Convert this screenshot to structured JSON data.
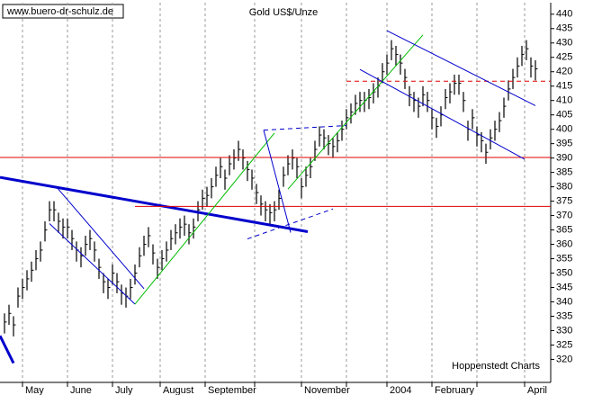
{
  "chart_data": {
    "type": "ohlc",
    "title": "Gold US$/Unze",
    "source_url": "www.buero-dr-schulz.de",
    "credit": "Hoppenstedt Charts",
    "color": "#000000",
    "grid_x": true,
    "x": [
      1,
      2,
      3,
      4,
      5,
      6,
      7,
      8,
      9,
      10,
      11,
      12,
      13,
      14,
      15,
      16,
      17,
      18,
      19,
      20,
      21,
      22,
      23,
      24,
      25,
      26,
      27,
      28,
      29,
      30,
      31,
      32,
      33,
      34,
      35,
      36,
      37,
      38,
      39,
      40,
      41,
      42,
      43,
      44,
      45,
      46,
      47,
      48,
      49,
      50,
      51,
      52,
      53,
      54,
      55,
      56,
      57,
      58,
      59,
      60,
      61,
      62,
      63,
      64,
      65,
      66,
      67,
      68,
      69,
      70,
      71,
      72,
      73,
      74,
      75,
      76,
      77,
      78,
      79,
      80,
      81,
      82,
      83,
      84,
      85,
      86,
      87,
      88,
      89,
      90,
      91,
      92,
      93,
      94,
      95,
      96,
      97,
      98,
      99,
      100,
      101,
      102,
      103,
      104,
      105,
      106,
      107,
      108,
      109,
      110,
      111,
      112,
      113,
      114,
      115,
      116,
      117,
      118,
      119
    ],
    "high": [
      336,
      339,
      335,
      345,
      348,
      351,
      354,
      358,
      361,
      368,
      375,
      375,
      371,
      369,
      369,
      365,
      361,
      359,
      363,
      365,
      361,
      355,
      350,
      348,
      353,
      350,
      346,
      345,
      348,
      353,
      359,
      363,
      366,
      360,
      355,
      358,
      361,
      365,
      367,
      369,
      370,
      367,
      369,
      375,
      379,
      380,
      383,
      387,
      390,
      386,
      391,
      393,
      396,
      393,
      389,
      386,
      381,
      377,
      375,
      374,
      375,
      379,
      387,
      391,
      393,
      390,
      383,
      387,
      390,
      396,
      401,
      400,
      398,
      397,
      399,
      403,
      407,
      409,
      412,
      413,
      413,
      414,
      416,
      418,
      423,
      426,
      431,
      429,
      426,
      421,
      415,
      413,
      411,
      415,
      413,
      407,
      404,
      408,
      414,
      416,
      419,
      419,
      413,
      403,
      407,
      401,
      399,
      395,
      400,
      403,
      406,
      411,
      417,
      421,
      425,
      429,
      431,
      425,
      424
    ],
    "low": [
      329,
      332,
      328,
      338,
      341,
      344,
      347,
      351,
      354,
      361,
      368,
      368,
      364,
      362,
      362,
      358,
      354,
      352,
      356,
      358,
      354,
      348,
      343,
      341,
      346,
      343,
      339,
      338,
      341,
      346,
      352,
      356,
      359,
      353,
      348,
      351,
      354,
      358,
      360,
      362,
      363,
      360,
      362,
      368,
      372,
      373,
      376,
      380,
      383,
      379,
      384,
      386,
      389,
      386,
      382,
      379,
      374,
      370,
      368,
      367,
      368,
      372,
      380,
      384,
      386,
      383,
      376,
      380,
      383,
      389,
      394,
      393,
      391,
      390,
      392,
      396,
      400,
      402,
      405,
      406,
      406,
      407,
      409,
      411,
      416,
      419,
      424,
      422,
      419,
      414,
      408,
      406,
      404,
      408,
      406,
      400,
      397,
      401,
      407,
      409,
      412,
      412,
      406,
      396,
      400,
      394,
      392,
      388,
      393,
      396,
      399,
      404,
      410,
      414,
      418,
      422,
      424,
      418,
      417
    ],
    "close": [
      333,
      336,
      332,
      342,
      345,
      348,
      351,
      355,
      358,
      365,
      372,
      372,
      368,
      366,
      366,
      362,
      358,
      356,
      360,
      362,
      358,
      352,
      347,
      345,
      350,
      347,
      343,
      342,
      345,
      350,
      356,
      360,
      363,
      357,
      352,
      355,
      358,
      362,
      364,
      366,
      367,
      364,
      366,
      372,
      376,
      377,
      380,
      384,
      387,
      383,
      388,
      390,
      393,
      390,
      386,
      383,
      378,
      374,
      372,
      371,
      372,
      376,
      384,
      388,
      390,
      387,
      380,
      384,
      387,
      393,
      398,
      397,
      395,
      394,
      396,
      400,
      404,
      406,
      409,
      410,
      410,
      411,
      413,
      415,
      420,
      423,
      428,
      426,
      423,
      418,
      412,
      410,
      408,
      412,
      410,
      404,
      401,
      405,
      411,
      413,
      416,
      416,
      410,
      400,
      404,
      398,
      396,
      392,
      397,
      400,
      403,
      408,
      414,
      418,
      422,
      426,
      428,
      422,
      421
    ],
    "xlim": [
      0,
      122.4
    ],
    "xticks": [
      {
        "value": 5,
        "label": "May"
      },
      {
        "value": 15,
        "label": "June"
      },
      {
        "value": 25,
        "label": "July"
      },
      {
        "value": 35.6,
        "label": "August"
      },
      {
        "value": 45.6,
        "label": "September"
      },
      {
        "value": 56.6,
        "label": null
      },
      {
        "value": 67,
        "label": "November"
      },
      {
        "value": 77,
        "label": null
      },
      {
        "value": 86,
        "label": "2004"
      },
      {
        "value": 96,
        "label": "February"
      },
      {
        "value": 106,
        "label": null
      },
      {
        "value": 116.6,
        "label": "April"
      }
    ],
    "ylim": [
      312,
      444
    ],
    "yticks": [
      320,
      325,
      330,
      335,
      340,
      345,
      350,
      355,
      360,
      365,
      370,
      375,
      380,
      385,
      390,
      395,
      400,
      405,
      410,
      415,
      420,
      425,
      430,
      435,
      440
    ],
    "trendlines": [
      {
        "color": "#0000cc",
        "width": 3,
        "dash": false,
        "points": [
          [
            0,
            383.3
          ],
          [
            68.4,
            364.4
          ]
        ]
      },
      {
        "color": "#0000cc",
        "width": 3,
        "dash": false,
        "points": [
          [
            0,
            328.2
          ],
          [
            3,
            318.7
          ]
        ]
      },
      {
        "color": "#dd0000",
        "width": 1,
        "dash": false,
        "points": [
          [
            0,
            390.2
          ],
          [
            122.4,
            390.2
          ]
        ]
      },
      {
        "color": "#dd0000",
        "width": 1,
        "dash": false,
        "points": [
          [
            30,
            373.2
          ],
          [
            122.4,
            373.2
          ]
        ]
      },
      {
        "color": "#dd0000",
        "width": 1,
        "dash": true,
        "points": [
          [
            77,
            416.7
          ],
          [
            122.4,
            416.7
          ]
        ]
      },
      {
        "color": "#0000cc",
        "width": 1,
        "dash": false,
        "points": [
          [
            12.4,
            380.2
          ],
          [
            32,
            344.6
          ]
        ]
      },
      {
        "color": "#0000cc",
        "width": 1,
        "dash": false,
        "points": [
          [
            11,
            367.2
          ],
          [
            30,
            339.2
          ]
        ]
      },
      {
        "color": "#00bb00",
        "width": 1,
        "dash": false,
        "points": [
          [
            30,
            339.2
          ],
          [
            61,
            398.7
          ]
        ]
      },
      {
        "color": "#00bb00",
        "width": 1,
        "dash": false,
        "points": [
          [
            64,
            379.2
          ],
          [
            94,
            432.8
          ]
        ]
      },
      {
        "color": "#0000cc",
        "width": 1,
        "dash": false,
        "points": [
          [
            58.6,
            399.7
          ],
          [
            64.6,
            364.1
          ]
        ]
      },
      {
        "color": "#0000cc",
        "width": 1,
        "dash": true,
        "points": [
          [
            58.6,
            399.7
          ],
          [
            77,
            401.3
          ]
        ]
      },
      {
        "color": "#0000cc",
        "width": 1,
        "dash": true,
        "points": [
          [
            55,
            361.9
          ],
          [
            74,
            372.3
          ]
        ]
      },
      {
        "color": "#0000cc",
        "width": 1,
        "dash": false,
        "points": [
          [
            86,
            434.3
          ],
          [
            119,
            408.2
          ]
        ]
      },
      {
        "color": "#0000cc",
        "width": 1,
        "dash": false,
        "points": [
          [
            80,
            420.8
          ],
          [
            116.6,
            389.6
          ]
        ]
      }
    ]
  }
}
